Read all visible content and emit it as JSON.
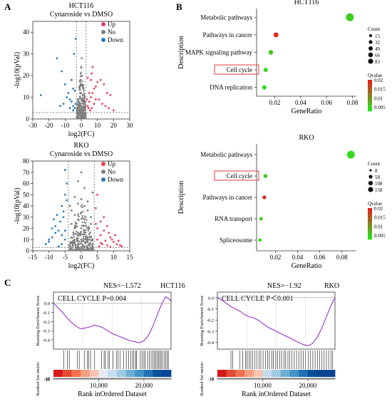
{
  "colors": {
    "up": "#e8405a",
    "no": "#7f7f7f",
    "down": "#2b7bbf",
    "gsea_line": "#9933cc",
    "highlight_box": "#e43b3b"
  },
  "panel_labels": [
    "A",
    "B",
    "C"
  ],
  "chart_data": [
    {
      "id": "volcano_hct116",
      "type": "scatter",
      "title": "HCT116",
      "subtitle": "Cynaroside vs DMSO",
      "xlabel": "log2(FC)",
      "ylabel": "-log10(pVal)",
      "xlim": [
        -30,
        30
      ],
      "ylim": [
        0,
        45
      ],
      "xticks": [
        -30,
        -20,
        -10,
        0,
        10,
        20,
        30
      ],
      "yticks": [
        0,
        10,
        20,
        30,
        40
      ],
      "fc_threshold": [
        -3,
        3
      ],
      "p_threshold": 3,
      "legend": [
        "Up",
        "No",
        "Down"
      ],
      "legend_position": "top-right",
      "series": [
        {
          "name": "Up",
          "points": [
            [
              4,
              6
            ],
            [
              5,
              8
            ],
            [
              6,
              10
            ],
            [
              7,
              12
            ],
            [
              8,
              14
            ],
            [
              9,
              15
            ],
            [
              10,
              17
            ],
            [
              12,
              18
            ],
            [
              14,
              16
            ],
            [
              16,
              12
            ],
            [
              18,
              11
            ],
            [
              4.5,
              5
            ],
            [
              5.5,
              4
            ],
            [
              6.5,
              5
            ],
            [
              5,
              12
            ],
            [
              6,
              18
            ],
            [
              6.5,
              21
            ],
            [
              7,
              24
            ],
            [
              4,
              19
            ],
            [
              11,
              9
            ],
            [
              13,
              7
            ],
            [
              15,
              6
            ],
            [
              17,
              5
            ],
            [
              20,
              4
            ],
            [
              8,
              7
            ],
            [
              9,
              9
            ],
            [
              3.5,
              9
            ]
          ]
        },
        {
          "name": "Down",
          "points": [
            [
              -25,
              11
            ],
            [
              -15,
              28
            ],
            [
              -12,
              22
            ],
            [
              -10,
              16
            ],
            [
              -8,
              12
            ],
            [
              -7,
              9
            ],
            [
              -6,
              8
            ],
            [
              -5,
              6
            ],
            [
              -4,
              5
            ],
            [
              -5,
              14
            ],
            [
              -6,
              18
            ],
            [
              -4.5,
              30
            ],
            [
              -3.5,
              37
            ],
            [
              -4,
              13
            ],
            [
              -9,
              10
            ],
            [
              -11,
              7
            ],
            [
              -13,
              6
            ],
            [
              -7,
              5
            ],
            [
              -3.5,
              7
            ],
            [
              -5,
              4
            ]
          ]
        },
        {
          "name": "No",
          "points": [
            [
              0,
              1
            ],
            [
              1,
              2
            ],
            [
              -1,
              2
            ],
            [
              2,
              4
            ],
            [
              -2,
              4
            ],
            [
              0,
              6
            ],
            [
              1,
              8
            ],
            [
              -1,
              7
            ],
            [
              2,
              10
            ],
            [
              -2,
              9
            ],
            [
              0,
              12
            ],
            [
              1,
              15
            ],
            [
              -1,
              14
            ],
            [
              0.5,
              20
            ],
            [
              -0.5,
              18
            ],
            [
              0,
              24
            ],
            [
              0.3,
              28
            ],
            [
              1.5,
              5
            ],
            [
              -1.5,
              6
            ],
            [
              2.5,
              3
            ],
            [
              -2.5,
              3
            ],
            [
              0,
              3
            ],
            [
              0.8,
              11
            ],
            [
              -0.8,
              10
            ],
            [
              0,
              16
            ]
          ]
        }
      ]
    },
    {
      "id": "volcano_rko",
      "type": "scatter",
      "title": "RKO",
      "subtitle": "Cynaroside vs DMSO",
      "xlabel": "log2(FC)",
      "ylabel": "-log10(pVal)",
      "xlim": [
        -15,
        15
      ],
      "ylim": [
        0,
        80
      ],
      "xticks": [
        -15,
        -10,
        -5,
        0,
        5,
        10,
        15
      ],
      "yticks": [
        0,
        10,
        20,
        30,
        40,
        50,
        60,
        70,
        80
      ],
      "fc_threshold": [
        -4,
        4
      ],
      "p_threshold": 3,
      "legend": [
        "Up",
        "No",
        "Down"
      ],
      "legend_position": "top-right",
      "series": [
        {
          "name": "Up",
          "points": [
            [
              5,
              10
            ],
            [
              6,
              14
            ],
            [
              7,
              18
            ],
            [
              8,
              22
            ],
            [
              9,
              12
            ],
            [
              10,
              8
            ],
            [
              11,
              6
            ],
            [
              12,
              5
            ],
            [
              5.5,
              4
            ],
            [
              6.5,
              6
            ],
            [
              7.5,
              9
            ],
            [
              8.5,
              16
            ],
            [
              9.5,
              10
            ],
            [
              5,
              20
            ],
            [
              6,
              26
            ],
            [
              7,
              30
            ],
            [
              4.5,
              24
            ],
            [
              10.5,
              14
            ],
            [
              11.5,
              9
            ],
            [
              12.5,
              4
            ],
            [
              4.5,
              38
            ],
            [
              5,
              50
            ],
            [
              6,
              7
            ],
            [
              8,
              5
            ],
            [
              9,
              3.5
            ]
          ]
        },
        {
          "name": "Down",
          "points": [
            [
              -5,
              10
            ],
            [
              -6,
              14
            ],
            [
              -7,
              18
            ],
            [
              -8,
              22
            ],
            [
              -9,
              12
            ],
            [
              -10,
              8
            ],
            [
              -5.5,
              30
            ],
            [
              -6,
              40
            ],
            [
              -5,
              50
            ],
            [
              -4.5,
              60
            ],
            [
              -5,
              72
            ],
            [
              -6.5,
              26
            ],
            [
              -7.5,
              32
            ],
            [
              -8,
              16
            ],
            [
              -9,
              20
            ],
            [
              -10,
              10
            ],
            [
              -11,
              6
            ],
            [
              -6,
              6
            ],
            [
              -7,
              4
            ],
            [
              -5,
              18
            ],
            [
              -4.5,
              45
            ],
            [
              -5.5,
              35
            ],
            [
              -8.5,
              28
            ]
          ]
        },
        {
          "name": "No",
          "points": [
            [
              0,
              2
            ],
            [
              1,
              4
            ],
            [
              -1,
              4
            ],
            [
              2,
              8
            ],
            [
              -2,
              8
            ],
            [
              3,
              12
            ],
            [
              -3,
              12
            ],
            [
              0,
              10
            ],
            [
              1,
              16
            ],
            [
              -1,
              16
            ],
            [
              2,
              20
            ],
            [
              -2,
              20
            ],
            [
              3,
              24
            ],
            [
              -3,
              24
            ],
            [
              0,
              20
            ],
            [
              1,
              28
            ],
            [
              -1,
              28
            ],
            [
              0,
              34
            ],
            [
              2,
              36
            ],
            [
              -2,
              32
            ],
            [
              3,
              30
            ],
            [
              -3,
              36
            ],
            [
              1,
              40
            ],
            [
              -1,
              42
            ],
            [
              0,
              46
            ],
            [
              2,
              44
            ],
            [
              -2,
              48
            ],
            [
              3.5,
              52
            ],
            [
              -3.5,
              40
            ],
            [
              1,
              56
            ],
            [
              -1,
              62
            ],
            [
              0,
              70
            ],
            [
              2.5,
              6
            ],
            [
              -2.5,
              6
            ]
          ]
        }
      ]
    },
    {
      "id": "kegg_hct116",
      "type": "scatter",
      "title": "HCT116",
      "xlabel": "GeneRatio",
      "ylabel": "Description",
      "xlim": [
        0.006,
        0.083
      ],
      "xticks": [
        0.02,
        0.04,
        0.06,
        0.08
      ],
      "categories": [
        "Metabolic pathways",
        "Pathways in cancer",
        "MAPK signaling pathway",
        "Cell cycle",
        "DNA replication"
      ],
      "gene_ratio": [
        0.078,
        0.021,
        0.017,
        0.013,
        0.012
      ],
      "count": [
        83,
        22,
        18,
        15,
        15
      ],
      "qvalue": [
        0.005,
        0.019,
        0.006,
        0.004,
        0.004
      ],
      "highlighted": "Cell cycle",
      "count_legend_title": "Count",
      "count_legend": [
        15,
        32,
        49,
        66,
        83
      ],
      "qvalue_legend_title": "Qvalue",
      "qvalue_legend": [
        0.02,
        0.015,
        0.01,
        0.005
      ]
    },
    {
      "id": "kegg_rko",
      "type": "scatter",
      "title": "RKO",
      "xlabel": "GeneRatio",
      "ylabel": "Description",
      "xlim": [
        0.003,
        0.093
      ],
      "xticks": [
        0.02,
        0.04,
        0.06,
        0.08
      ],
      "categories": [
        "Metabolic pathways",
        "Cell cycle",
        "Pathways in cancer",
        "RNA transport",
        "Spliceosome"
      ],
      "gene_ratio": [
        0.088,
        0.011,
        0.01,
        0.007,
        0.006
      ],
      "count": [
        158,
        20,
        18,
        12,
        10
      ],
      "qvalue": [
        0.004,
        0.005,
        0.019,
        0.005,
        0.004
      ],
      "highlighted": "Cell cycle",
      "count_legend_title": "Count",
      "count_legend": [
        8,
        58,
        108,
        158
      ],
      "qvalue_legend_title": "Qvalue",
      "qvalue_legend": [
        0.02,
        0.015,
        0.01,
        0.005
      ]
    },
    {
      "id": "gsea_hct116",
      "type": "line",
      "cell_line": "HCT116",
      "nes_text": "NES=−1.572",
      "label_text": "CELL CYCLE P=0.004",
      "ylabel_top": "Running Enrichment Score",
      "ylabel_bottom": "Ranked list metric",
      "xlabel": "Rank inOrdered Dataset",
      "xlim": [
        0,
        26000
      ],
      "ylim": [
        -0.5,
        0.12
      ],
      "xticks": [
        10000,
        20000
      ],
      "xticklabels": [
        "10,000",
        "20,000"
      ],
      "yticks": [
        0.0,
        -0.1,
        -0.2,
        -0.3,
        -0.4
      ],
      "metric_yticks": [
        10,
        0,
        -10,
        -20
      ],
      "x": [
        0,
        1000,
        2000,
        3000,
        4000,
        5000,
        6000,
        7000,
        8000,
        9000,
        10000,
        11000,
        12000,
        13000,
        14000,
        15000,
        16000,
        17000,
        18000,
        19000,
        20000,
        21000,
        22000,
        23000,
        24000,
        24800,
        25500,
        26000
      ],
      "y": [
        0.0,
        -0.05,
        -0.1,
        -0.16,
        -0.21,
        -0.25,
        -0.28,
        -0.27,
        -0.26,
        -0.24,
        -0.25,
        -0.27,
        -0.3,
        -0.33,
        -0.35,
        -0.37,
        -0.39,
        -0.41,
        -0.42,
        -0.43,
        -0.41,
        -0.35,
        -0.25,
        -0.12,
        0.0,
        0.07,
        0.05,
        0.02
      ],
      "hits": [
        2300,
        3100,
        3500,
        5300,
        5700,
        6900,
        7500,
        7800,
        8200,
        9100,
        10600,
        11200,
        11500,
        12100,
        12400,
        13200,
        13900,
        14300,
        14700,
        15500,
        16100,
        16600,
        17100,
        17500,
        17800,
        18200,
        18400,
        19200,
        19600,
        20000,
        20300,
        20800,
        21200,
        21600,
        22000,
        22300,
        22600,
        22900,
        23200,
        23500,
        23800,
        24100,
        24500,
        24800,
        25100,
        25400
      ],
      "heatmap_colors": [
        "#d7191c",
        "#e34a33",
        "#f0724c",
        "#f69d80",
        "#fbc4b0",
        "#e6ecf4",
        "#c6dbef",
        "#9ecae1",
        "#6baed6",
        "#4292c6",
        "#2171b5",
        "#08519c",
        "#084594"
      ],
      "metric": {
        "start": 16,
        "end": -22,
        "zero_at": 0.55
      }
    },
    {
      "id": "gsea_rko",
      "type": "line",
      "cell_line": "RKO",
      "nes_text": "NES=−1.92",
      "label_text": "CELL CYCLE  P＜0.001",
      "ylabel_top": "Running Enrichment Score",
      "ylabel_bottom": "Ranked list metric",
      "xlabel": "Rank inOrdered Dataset",
      "xlim": [
        0,
        26000
      ],
      "ylim": [
        -0.46,
        0.05
      ],
      "xticks": [
        10000,
        20000
      ],
      "xticklabels": [
        "10,000",
        "20,000"
      ],
      "yticks": [
        0.0,
        -0.1,
        -0.2,
        -0.3,
        -0.4
      ],
      "metric_yticks": [
        10,
        0,
        -10
      ],
      "x": [
        0,
        1000,
        2000,
        3000,
        4000,
        5000,
        6000,
        7000,
        8000,
        9000,
        10000,
        11000,
        12000,
        13000,
        14000,
        15000,
        16000,
        17000,
        18000,
        19000,
        20000,
        21000,
        22000,
        23000,
        24000,
        25000,
        25700,
        26000
      ],
      "y": [
        0.0,
        -0.02,
        -0.05,
        -0.08,
        -0.1,
        -0.12,
        -0.15,
        -0.17,
        -0.18,
        -0.2,
        -0.23,
        -0.26,
        -0.28,
        -0.3,
        -0.32,
        -0.34,
        -0.36,
        -0.38,
        -0.4,
        -0.42,
        -0.43,
        -0.41,
        -0.36,
        -0.28,
        -0.18,
        -0.08,
        -0.02,
        0.0
      ],
      "hits": [
        3000,
        3400,
        5000,
        5600,
        6200,
        6600,
        7000,
        7400,
        7800,
        8300,
        8700,
        9200,
        9600,
        10100,
        10600,
        11100,
        11500,
        12000,
        12400,
        12900,
        13300,
        13800,
        14200,
        14700,
        15100,
        15600,
        16000,
        16500,
        17000,
        17500,
        18000,
        18500,
        19000,
        19500,
        20100,
        20600,
        21100,
        21600,
        22100,
        22600,
        23100,
        23600,
        24100,
        24600,
        25100,
        25500
      ],
      "heatmap_colors": [
        "#d7191c",
        "#e34a33",
        "#f0724c",
        "#f69d80",
        "#fbc4b0",
        "#c6dbef",
        "#9ecae1",
        "#6baed6",
        "#4292c6",
        "#2171b5",
        "#08519c",
        "#084594",
        "#084594"
      ],
      "metric": {
        "start": 14,
        "end": -12,
        "zero_at": 0.5
      }
    }
  ]
}
